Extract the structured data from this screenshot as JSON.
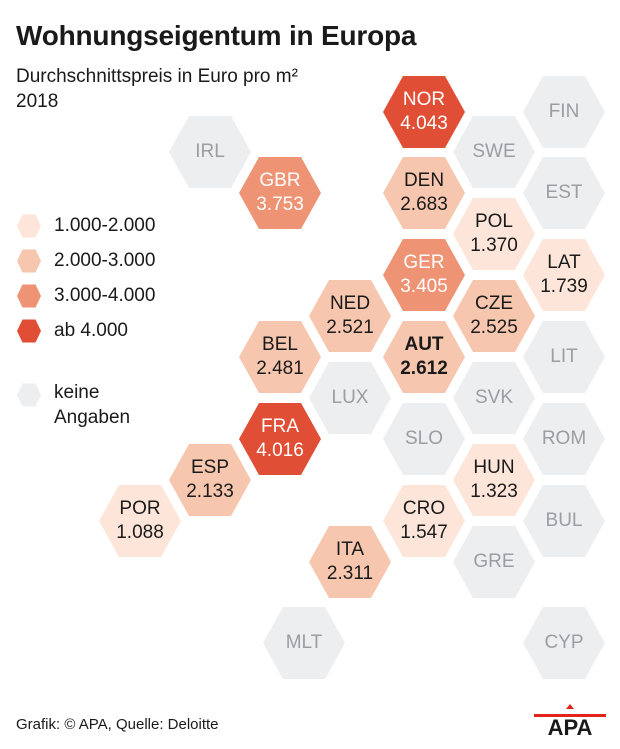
{
  "header": {
    "title": "Wohnungseigentum in Europa",
    "subtitle_line1": "Durchschnittspreis in Euro pro m²",
    "subtitle_line2": "2018"
  },
  "colors": {
    "c1": "#fde6d9",
    "c2": "#f7c6ae",
    "c3": "#ee9373",
    "c4": "#e04e35",
    "na": "#eceef0"
  },
  "legend": {
    "items": [
      {
        "label": "1.000-2.000",
        "class": "c1"
      },
      {
        "label": "2.000-3.000",
        "class": "c2"
      },
      {
        "label": "3.000-4.000",
        "class": "c3"
      },
      {
        "label": "ab 4.000",
        "class": "c4"
      }
    ],
    "na_line1": "keine",
    "na_line2": "Angaben"
  },
  "countries": [
    {
      "code": "NOR",
      "value": "4.043",
      "class": "c4"
    },
    {
      "code": "FIN",
      "value": "",
      "class": "na"
    },
    {
      "code": "IRL",
      "value": "",
      "class": "na"
    },
    {
      "code": "SWE",
      "value": "",
      "class": "na"
    },
    {
      "code": "GBR",
      "value": "3.753",
      "class": "c3"
    },
    {
      "code": "DEN",
      "value": "2.683",
      "class": "c2"
    },
    {
      "code": "EST",
      "value": "",
      "class": "na"
    },
    {
      "code": "POL",
      "value": "1.370",
      "class": "c1"
    },
    {
      "code": "GER",
      "value": "3.405",
      "class": "c3"
    },
    {
      "code": "LAT",
      "value": "1.739",
      "class": "c1"
    },
    {
      "code": "NED",
      "value": "2.521",
      "class": "c2"
    },
    {
      "code": "CZE",
      "value": "2.525",
      "class": "c2"
    },
    {
      "code": "BEL",
      "value": "2.481",
      "class": "c2"
    },
    {
      "code": "AUT",
      "value": "2.612",
      "class": "c2"
    },
    {
      "code": "LIT",
      "value": "",
      "class": "na"
    },
    {
      "code": "LUX",
      "value": "",
      "class": "na"
    },
    {
      "code": "SVK",
      "value": "",
      "class": "na"
    },
    {
      "code": "FRA",
      "value": "4.016",
      "class": "c4"
    },
    {
      "code": "SLO",
      "value": "",
      "class": "na"
    },
    {
      "code": "ROM",
      "value": "",
      "class": "na"
    },
    {
      "code": "ESP",
      "value": "2.133",
      "class": "c2"
    },
    {
      "code": "HUN",
      "value": "1.323",
      "class": "c1"
    },
    {
      "code": "POR",
      "value": "1.088",
      "class": "c1"
    },
    {
      "code": "CRO",
      "value": "1.547",
      "class": "c1"
    },
    {
      "code": "BUL",
      "value": "",
      "class": "na"
    },
    {
      "code": "ITA",
      "value": "2.311",
      "class": "c2"
    },
    {
      "code": "GRE",
      "value": "",
      "class": "na"
    },
    {
      "code": "MLT",
      "value": "",
      "class": "na"
    },
    {
      "code": "CYP",
      "value": "",
      "class": "na"
    }
  ],
  "footer": {
    "source": "Grafik: © APA, Quelle: Deloitte",
    "logo_text": "APA"
  }
}
